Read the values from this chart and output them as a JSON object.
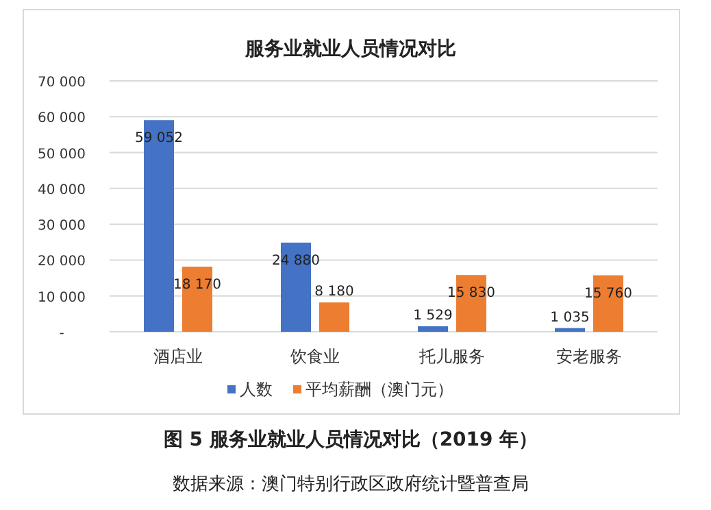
{
  "chart_data": {
    "type": "bar",
    "title": "服务业就业人员情况对比",
    "categories": [
      "酒店业",
      "饮食业",
      "托儿服务",
      "安老服务"
    ],
    "series": [
      {
        "name": "人数",
        "color": "#4472c4",
        "values": [
          59052,
          24880,
          1529,
          1035
        ],
        "value_labels": [
          "59 052",
          "24 880",
          "1 529",
          "1 035"
        ]
      },
      {
        "name": "平均薪酬（澳门元）",
        "color": "#ed7d31",
        "values": [
          18170,
          8180,
          15830,
          15760
        ],
        "value_labels": [
          "18 170",
          "8 180",
          "15 830",
          "15 760"
        ]
      }
    ],
    "ylim": [
      0,
      70000
    ],
    "yticks": [
      {
        "value": 0,
        "label": "-"
      },
      {
        "value": 10000,
        "label": "10 000"
      },
      {
        "value": 20000,
        "label": "20 000"
      },
      {
        "value": 30000,
        "label": "30 000"
      },
      {
        "value": 40000,
        "label": "40 000"
      },
      {
        "value": 50000,
        "label": "50 000"
      },
      {
        "value": 60000,
        "label": "60 000"
      },
      {
        "value": 70000,
        "label": "70 000"
      }
    ],
    "grid": "y",
    "legend": "bottom",
    "annotations": [
      "图 5 服务业就业人员情况对比（2019 年）",
      "数据来源：澳门特别行政区政府统计暨普查局"
    ]
  }
}
